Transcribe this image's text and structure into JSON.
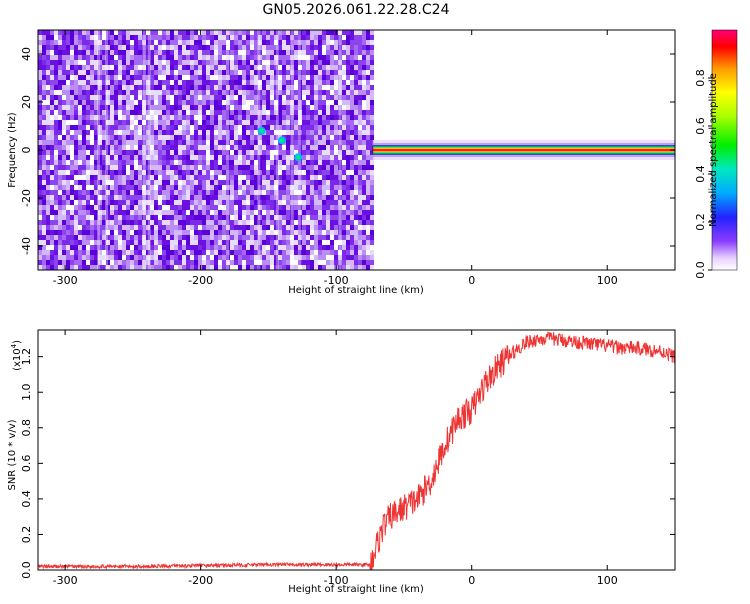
{
  "title": "GN05.2026.061.22.28.C24",
  "chart_data": [
    {
      "type": "heatmap",
      "xlabel": "Height of straight line (km)",
      "ylabel": "Frequency (Hz)",
      "xlim": [
        -320,
        150
      ],
      "ylim": [
        -50,
        50
      ],
      "x_ticks": [
        "-300",
        "-200",
        "-100",
        "0",
        "100"
      ],
      "y_ticks": [
        "-40",
        "-20",
        "0",
        "20",
        "40"
      ],
      "colorbar": {
        "label": "Normalized spectral amplitude",
        "range": [
          0,
          1
        ],
        "ticks": [
          "0.0",
          "0.2",
          "0.4",
          "0.6",
          "0.8"
        ]
      },
      "regions": [
        {
          "x_range": [
            -320,
            -73
          ],
          "y_range": [
            -50,
            50
          ],
          "amplitude": 0.12
        },
        {
          "x_range": [
            -73,
            150
          ],
          "y_center": 0,
          "amplitude": 0.95
        }
      ]
    },
    {
      "type": "line",
      "xlabel": "Height of straight line (km)",
      "ylabel": "SNR (10 * v/v)",
      "y_scale_label": "(x10",
      "y_scale_exp": "4",
      "xlim": [
        -320,
        150
      ],
      "ylim": [
        0,
        1.35
      ],
      "x_ticks": [
        "-300",
        "-200",
        "-100",
        "0",
        "100"
      ],
      "y_ticks": [
        "0.0",
        "0.2",
        "0.4",
        "0.6",
        "0.8",
        "1.0",
        "1.2"
      ],
      "color": "#ee3333",
      "series": [
        {
          "x": [
            -320,
            -250,
            -200,
            -150,
            -100,
            -75,
            -65,
            -60,
            -50,
            -40,
            -30,
            -20,
            -10,
            0,
            10,
            20,
            30,
            40,
            50,
            60,
            70,
            80,
            90,
            100,
            110,
            120,
            130,
            140,
            150
          ],
          "y": [
            0.02,
            0.02,
            0.025,
            0.03,
            0.03,
            0.03,
            0.25,
            0.3,
            0.35,
            0.4,
            0.5,
            0.7,
            0.85,
            0.9,
            1.05,
            1.15,
            1.22,
            1.28,
            1.3,
            1.3,
            1.29,
            1.28,
            1.27,
            1.26,
            1.25,
            1.25,
            1.24,
            1.23,
            1.2
          ]
        }
      ]
    }
  ]
}
